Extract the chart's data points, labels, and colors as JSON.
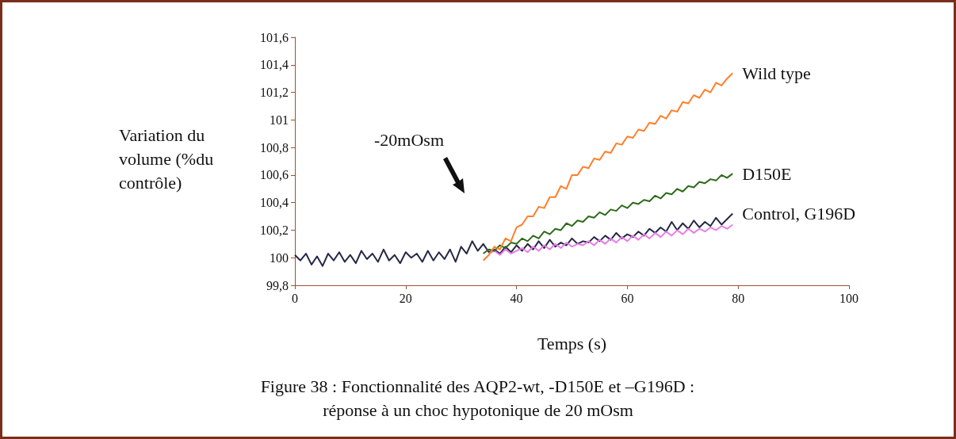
{
  "chart_data": {
    "type": "line",
    "xlabel": "Temps (s)",
    "ylabel": "Variation du volume (%du contrôle)",
    "xlim": [
      0,
      100
    ],
    "xticks": [
      0,
      20,
      40,
      60,
      80,
      100
    ],
    "ylim": [
      99.8,
      101.6
    ],
    "yticks": [
      {
        "value": 99.8,
        "label": "99,8"
      },
      {
        "value": 100,
        "label": "100"
      },
      {
        "value": 100.2,
        "label": "100,2"
      },
      {
        "value": 100.4,
        "label": "100,4"
      },
      {
        "value": 100.6,
        "label": "100,6"
      },
      {
        "value": 100.8,
        "label": "100,8"
      },
      {
        "value": 101,
        "label": "101"
      },
      {
        "value": 101.2,
        "label": "101,2"
      },
      {
        "value": 101.4,
        "label": "101,4"
      },
      {
        "value": 101.6,
        "label": "101,6"
      }
    ],
    "grid": false,
    "legend": false,
    "marker": "none",
    "line_style": "solid",
    "annotations": [
      "-20mOsm",
      "Figure 38 : Fonctionnalité des AQP2-wt, -D150E et –G196D :",
      "réponse à un choc hypotonique de 20 mOsm"
    ],
    "series": [
      {
        "name": "Control, G196D",
        "color": "#262945",
        "x": [
          0,
          1,
          2,
          3,
          4,
          5,
          6,
          7,
          8,
          9,
          10,
          11,
          12,
          13,
          14,
          15,
          16,
          17,
          18,
          19,
          20,
          21,
          22,
          23,
          24,
          25,
          26,
          27,
          28,
          29,
          30,
          31,
          32,
          33,
          34,
          35,
          36,
          37,
          38,
          39,
          40,
          41,
          42,
          43,
          44,
          45,
          46,
          47,
          48,
          49,
          50,
          51,
          52,
          53,
          54,
          55,
          56,
          57,
          58,
          59,
          60,
          61,
          62,
          63,
          64,
          65,
          66,
          67,
          68,
          69,
          70,
          71,
          72,
          73,
          74,
          75,
          76,
          77,
          78,
          79
        ],
        "values": [
          100.02,
          99.98,
          100.03,
          99.95,
          100.01,
          99.94,
          100.03,
          99.98,
          100.04,
          99.97,
          100.02,
          99.96,
          100.05,
          99.99,
          100.03,
          99.97,
          100.06,
          99.98,
          100.02,
          99.96,
          100.04,
          100.0,
          100.03,
          99.97,
          100.05,
          99.98,
          100.04,
          99.99,
          100.06,
          99.97,
          100.08,
          100.03,
          100.12,
          100.05,
          100.1,
          100.04,
          100.06,
          100.03,
          100.08,
          100.04,
          100.09,
          100.05,
          100.1,
          100.06,
          100.12,
          100.07,
          100.13,
          100.08,
          100.11,
          100.09,
          100.14,
          100.1,
          100.12,
          100.11,
          100.15,
          100.12,
          100.16,
          100.13,
          100.18,
          100.14,
          100.17,
          100.15,
          100.19,
          100.16,
          100.21,
          100.18,
          100.22,
          100.19,
          100.26,
          100.2,
          100.25,
          100.21,
          100.27,
          100.22,
          100.26,
          100.23,
          100.29,
          100.24,
          100.28,
          100.32
        ]
      },
      {
        "color": "#e87ee8",
        "x": [
          35,
          36,
          37,
          38,
          39,
          40,
          41,
          42,
          43,
          44,
          45,
          46,
          47,
          48,
          49,
          50,
          51,
          52,
          53,
          54,
          55,
          56,
          57,
          58,
          59,
          60,
          61,
          62,
          63,
          64,
          65,
          66,
          67,
          68,
          69,
          70,
          71,
          72,
          73,
          74,
          75,
          76,
          77,
          78,
          79
        ],
        "values": [
          100.03,
          100.05,
          100.02,
          100.06,
          100.03,
          100.05,
          100.07,
          100.04,
          100.08,
          100.05,
          100.09,
          100.06,
          100.1,
          100.07,
          100.11,
          100.08,
          100.1,
          100.09,
          100.12,
          100.09,
          100.13,
          100.1,
          100.14,
          100.11,
          100.15,
          100.12,
          100.16,
          100.13,
          100.17,
          100.14,
          100.18,
          100.15,
          100.19,
          100.16,
          100.2,
          100.17,
          100.21,
          100.18,
          100.21,
          100.19,
          100.22,
          100.2,
          100.23,
          100.21,
          100.24
        ]
      },
      {
        "name": "D150E",
        "color": "#2e6b1a",
        "x": [
          34,
          35,
          36,
          37,
          38,
          39,
          40,
          41,
          42,
          43,
          44,
          45,
          46,
          47,
          48,
          49,
          50,
          51,
          52,
          53,
          54,
          55,
          56,
          57,
          58,
          59,
          60,
          61,
          62,
          63,
          64,
          65,
          66,
          67,
          68,
          69,
          70,
          71,
          72,
          73,
          74,
          75,
          76,
          77,
          78,
          79
        ],
        "values": [
          100.03,
          100.06,
          100.05,
          100.09,
          100.07,
          100.11,
          100.1,
          100.14,
          100.12,
          100.16,
          100.14,
          100.19,
          100.17,
          100.21,
          100.2,
          100.25,
          100.23,
          100.27,
          100.26,
          100.3,
          100.29,
          100.33,
          100.31,
          100.35,
          100.34,
          100.38,
          100.36,
          100.4,
          100.39,
          100.42,
          100.41,
          100.45,
          100.43,
          100.47,
          100.46,
          100.5,
          100.48,
          100.52,
          100.51,
          100.55,
          100.54,
          100.57,
          100.56,
          100.6,
          100.58,
          100.61
        ]
      },
      {
        "name": "Wild type",
        "color": "#ff7f2a",
        "x": [
          34,
          35,
          36,
          37,
          38,
          39,
          40,
          41,
          42,
          43,
          44,
          45,
          46,
          47,
          48,
          49,
          50,
          51,
          52,
          53,
          54,
          55,
          56,
          57,
          58,
          59,
          60,
          61,
          62,
          63,
          64,
          65,
          66,
          67,
          68,
          69,
          70,
          71,
          72,
          73,
          74,
          75,
          76,
          77,
          78,
          79
        ],
        "values": [
          99.98,
          100.02,
          100.08,
          100.06,
          100.14,
          100.12,
          100.22,
          100.24,
          100.3,
          100.3,
          100.37,
          100.36,
          100.44,
          100.44,
          100.52,
          100.5,
          100.6,
          100.6,
          100.66,
          100.65,
          100.72,
          100.71,
          100.77,
          100.76,
          100.83,
          100.82,
          100.88,
          100.87,
          100.93,
          100.92,
          100.98,
          100.97,
          101.03,
          101.01,
          101.07,
          101.06,
          101.13,
          101.12,
          101.18,
          101.16,
          101.22,
          101.2,
          101.27,
          101.25,
          101.3,
          101.34
        ]
      }
    ]
  }
}
